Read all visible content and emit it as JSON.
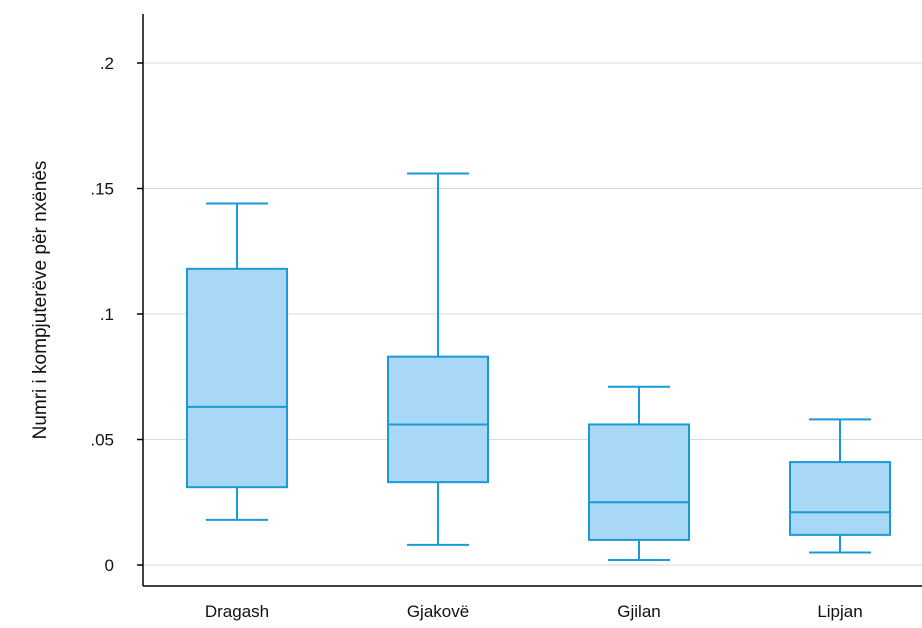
{
  "chart_data": {
    "type": "boxplot",
    "title": "",
    "xlabel": "",
    "ylabel": "Numri i kompjuterëve për nxënës",
    "ylim": [
      -0.002,
      0.215
    ],
    "yticks": [
      0,
      0.05,
      0.1,
      0.15,
      0.2
    ],
    "ytick_labels": [
      "0",
      ".05",
      ".1",
      ".15",
      ".2"
    ],
    "grid": "horizontal",
    "categories": [
      "Dragash",
      "Gjakovë",
      "Gjilan",
      "Lipjan"
    ],
    "boxes": [
      {
        "category": "Dragash",
        "whisker_low": 0.018,
        "q1": 0.031,
        "median": 0.063,
        "q3": 0.118,
        "whisker_high": 0.144
      },
      {
        "category": "Gjakovë",
        "whisker_low": 0.008,
        "q1": 0.033,
        "median": 0.056,
        "q3": 0.083,
        "whisker_high": 0.156
      },
      {
        "category": "Gjilan",
        "whisker_low": 0.002,
        "q1": 0.01,
        "median": 0.025,
        "q3": 0.056,
        "whisker_high": 0.071
      },
      {
        "category": "Lipjan",
        "whisker_low": 0.005,
        "q1": 0.012,
        "median": 0.021,
        "q3": 0.041,
        "whisker_high": 0.058
      }
    ],
    "colors": {
      "box_fill": "#a8d8f5",
      "box_stroke": "#1a9ad6",
      "grid": "#d9d9d9",
      "axis": "#000000"
    }
  }
}
